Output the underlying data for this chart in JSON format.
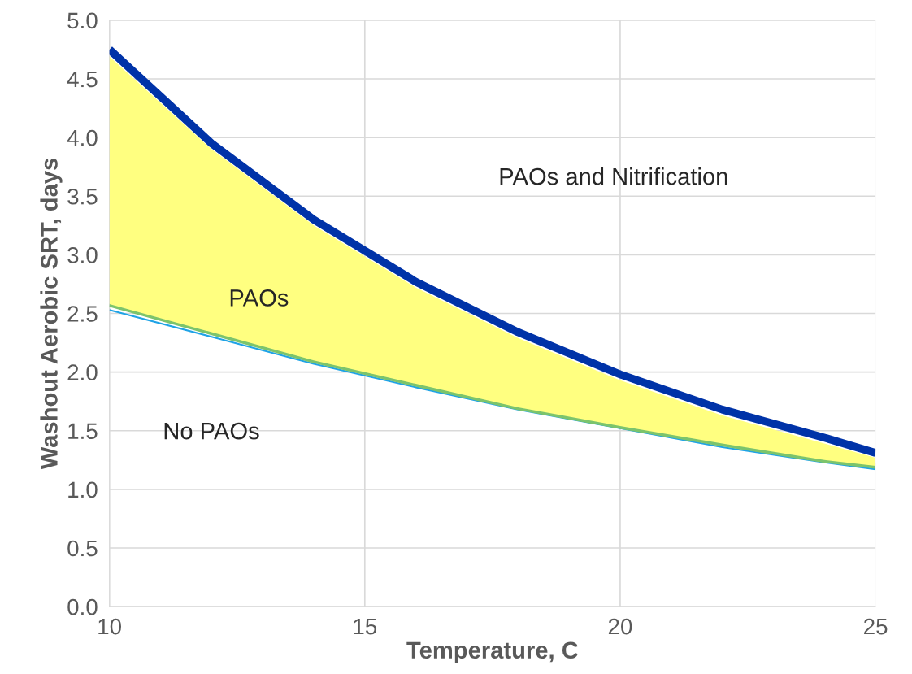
{
  "chart_data": {
    "type": "line",
    "xlabel": "Temperature, C",
    "ylabel": "Washout Aerobic SRT, days",
    "x": [
      10,
      12,
      14,
      16,
      18,
      20,
      22,
      24,
      25
    ],
    "series": [
      {
        "color": "#0033a8",
        "values": [
          4.75,
          3.95,
          3.3,
          2.77,
          2.34,
          1.98,
          1.68,
          1.44,
          1.31
        ],
        "upper": [
          4.69,
          3.9,
          3.25,
          2.72,
          2.29,
          1.93,
          1.63,
          1.39,
          1.27
        ],
        "lower": [
          2.58,
          2.34,
          2.1,
          1.9,
          1.7,
          1.54,
          1.39,
          1.25,
          1.2
        ]
      },
      {
        "color": "#7cc46c",
        "values": [
          2.58,
          2.34,
          2.1,
          1.9,
          1.7,
          1.54,
          1.39,
          1.25,
          1.2
        ]
      },
      {
        "color": "#1fa3e6",
        "values": [
          2.53,
          2.3,
          2.07,
          1.87,
          1.68,
          1.52,
          1.36,
          1.23,
          1.17
        ]
      }
    ],
    "xlim": [
      10,
      25
    ],
    "xticks": [
      10,
      15,
      20,
      25
    ],
    "ylim": [
      0,
      5
    ],
    "yticks": [
      {
        "value": 0,
        "label": "0.0"
      },
      {
        "value": 0.5,
        "label": "0.5"
      },
      {
        "value": 1,
        "label": "1.0"
      },
      {
        "value": 1.5,
        "label": "1.5"
      },
      {
        "value": 2,
        "label": "2.0"
      },
      {
        "value": 2.5,
        "label": "2.5"
      },
      {
        "value": 3,
        "label": "3.0"
      },
      {
        "value": 3.5,
        "label": "3.5"
      },
      {
        "value": 4,
        "label": "4.0"
      },
      {
        "value": 4.5,
        "label": "4.5"
      },
      {
        "value": 5,
        "label": "5.0"
      }
    ],
    "grid": true,
    "annotations": [
      "PAOs and Nitrification",
      "PAOs",
      "No PAOs"
    ]
  }
}
